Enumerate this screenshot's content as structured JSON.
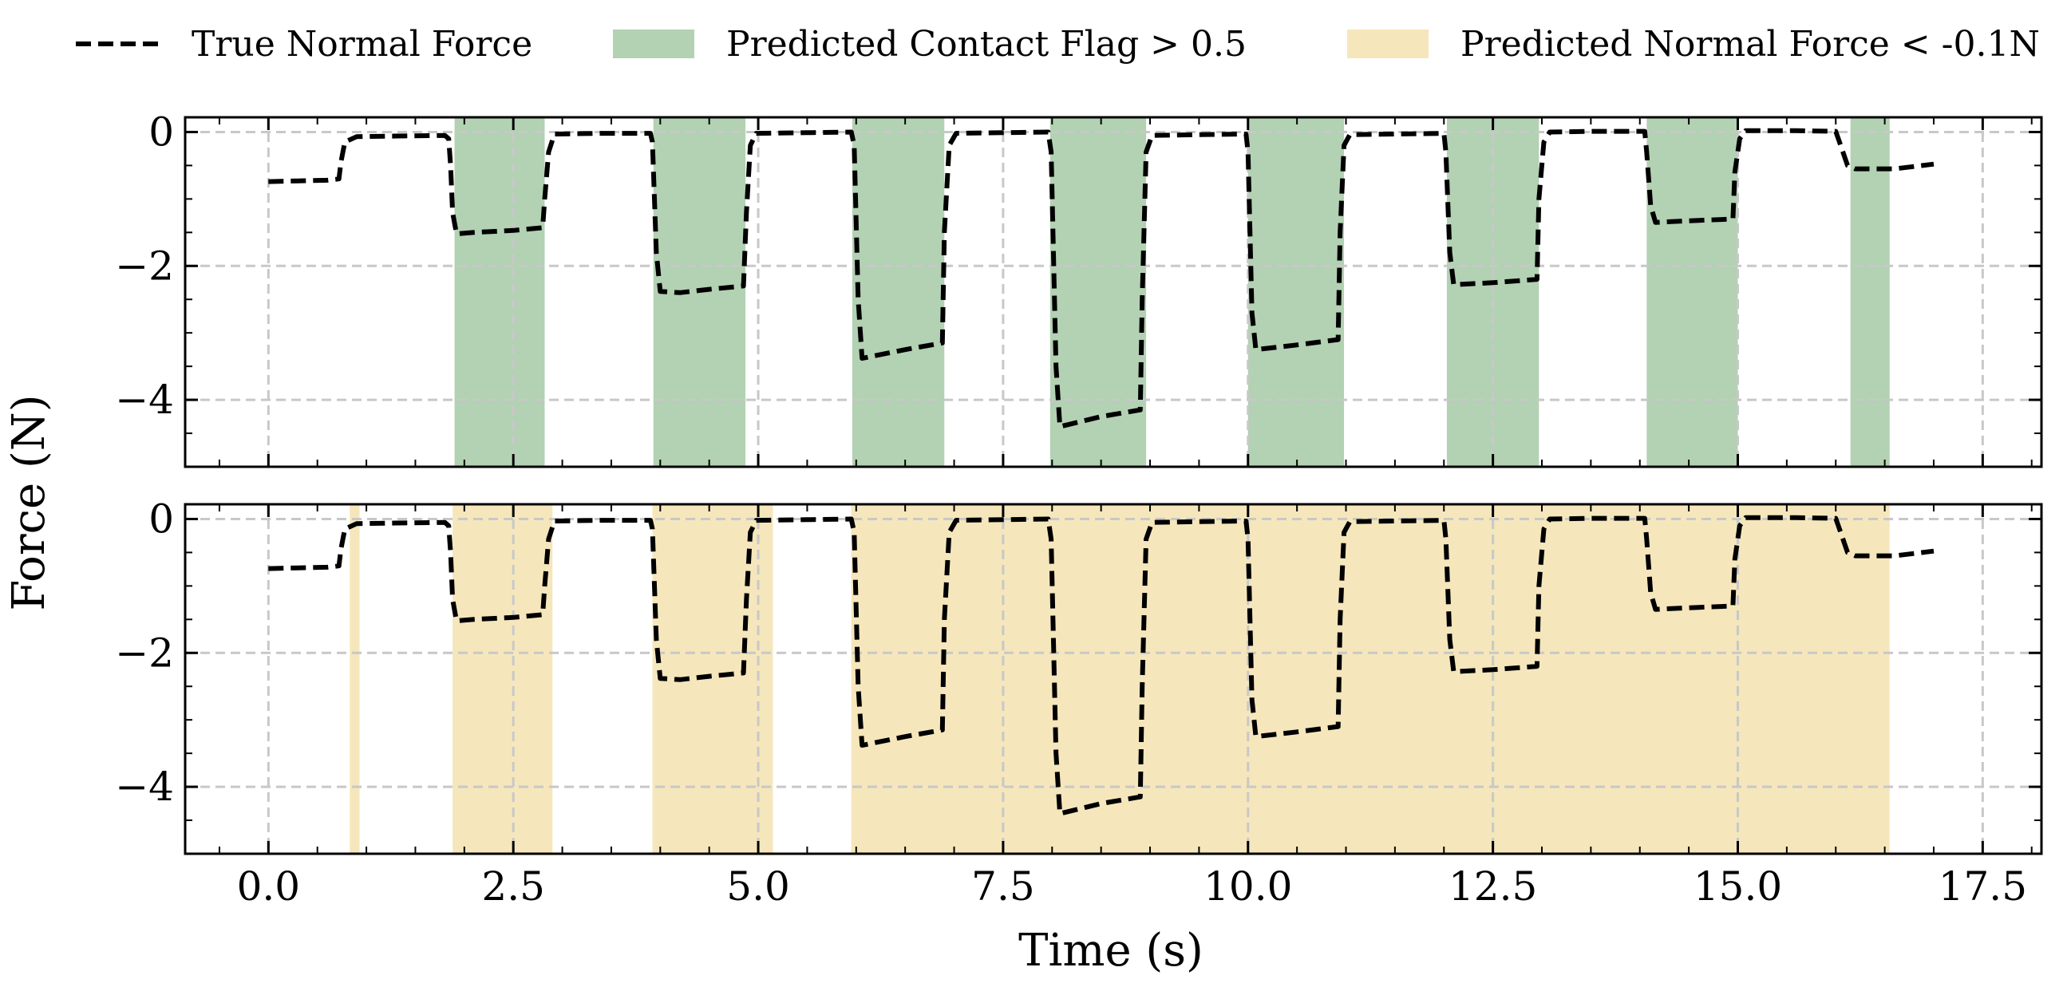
{
  "chart_data": {
    "type": "line",
    "xlabel": "Time (s)",
    "ylabel": "Force (N)",
    "xlim": [
      -0.85,
      18.1
    ],
    "ylim": [
      -5.0,
      0.22
    ],
    "x_ticks": [
      0.0,
      2.5,
      5.0,
      7.5,
      10.0,
      12.5,
      15.0,
      17.5
    ],
    "x_tick_labels": [
      "0.0",
      "2.5",
      "5.0",
      "7.5",
      "10.0",
      "12.5",
      "15.0",
      "17.5"
    ],
    "y_ticks": [
      0,
      -2,
      -4
    ],
    "y_tick_labels": [
      "0",
      "−2",
      "−4"
    ],
    "grid": true,
    "legend": {
      "placement": "top",
      "entries": [
        {
          "label": "True Normal Force",
          "style": "dashed-line",
          "color": "#000000"
        },
        {
          "label": "Predicted Contact Flag > 0.5",
          "style": "patch",
          "color": "#b3d1b3"
        },
        {
          "label": "Predicted Normal Force < -0.1N",
          "style": "patch",
          "color": "#f5e6bc"
        }
      ]
    },
    "series": [
      {
        "name": "True Normal Force",
        "color": "#000000",
        "style": "dashed",
        "points": [
          [
            0.0,
            -0.74
          ],
          [
            0.3,
            -0.73
          ],
          [
            0.6,
            -0.72
          ],
          [
            0.72,
            -0.7
          ],
          [
            0.74,
            -0.45
          ],
          [
            0.78,
            -0.15
          ],
          [
            0.9,
            -0.07
          ],
          [
            1.3,
            -0.06
          ],
          [
            1.8,
            -0.05
          ],
          [
            1.84,
            -0.1
          ],
          [
            1.86,
            -0.5
          ],
          [
            1.88,
            -1.2
          ],
          [
            1.92,
            -1.52
          ],
          [
            2.1,
            -1.5
          ],
          [
            2.5,
            -1.47
          ],
          [
            2.8,
            -1.43
          ],
          [
            2.82,
            -1.0
          ],
          [
            2.86,
            -0.3
          ],
          [
            2.92,
            -0.03
          ],
          [
            3.4,
            -0.02
          ],
          [
            3.9,
            -0.02
          ],
          [
            3.92,
            -0.15
          ],
          [
            3.96,
            -1.8
          ],
          [
            4.0,
            -2.38
          ],
          [
            4.2,
            -2.4
          ],
          [
            4.5,
            -2.35
          ],
          [
            4.85,
            -2.3
          ],
          [
            4.88,
            -1.2
          ],
          [
            4.92,
            -0.2
          ],
          [
            4.98,
            -0.02
          ],
          [
            5.5,
            -0.01
          ],
          [
            5.95,
            0.0
          ],
          [
            5.98,
            -0.2
          ],
          [
            6.02,
            -2.5
          ],
          [
            6.06,
            -3.38
          ],
          [
            6.5,
            -3.25
          ],
          [
            6.88,
            -3.15
          ],
          [
            6.9,
            -1.5
          ],
          [
            6.95,
            -0.2
          ],
          [
            7.02,
            -0.02
          ],
          [
            7.5,
            -0.01
          ],
          [
            7.96,
            0.0
          ],
          [
            7.99,
            -0.3
          ],
          [
            8.04,
            -3.5
          ],
          [
            8.08,
            -4.4
          ],
          [
            8.5,
            -4.25
          ],
          [
            8.9,
            -4.15
          ],
          [
            8.92,
            -2.5
          ],
          [
            8.96,
            -0.3
          ],
          [
            9.02,
            -0.05
          ],
          [
            9.5,
            -0.04
          ],
          [
            9.98,
            -0.03
          ],
          [
            10.0,
            -0.3
          ],
          [
            10.04,
            -2.7
          ],
          [
            10.08,
            -3.25
          ],
          [
            10.5,
            -3.18
          ],
          [
            10.92,
            -3.1
          ],
          [
            10.94,
            -1.5
          ],
          [
            10.98,
            -0.2
          ],
          [
            11.04,
            -0.04
          ],
          [
            11.5,
            -0.03
          ],
          [
            12.0,
            -0.02
          ],
          [
            12.02,
            -0.3
          ],
          [
            12.06,
            -1.8
          ],
          [
            12.1,
            -2.28
          ],
          [
            12.5,
            -2.25
          ],
          [
            12.95,
            -2.2
          ],
          [
            12.97,
            -1.0
          ],
          [
            13.02,
            -0.15
          ],
          [
            13.08,
            0.0
          ],
          [
            13.5,
            0.01
          ],
          [
            14.05,
            0.01
          ],
          [
            14.07,
            -0.3
          ],
          [
            14.11,
            -1.1
          ],
          [
            14.16,
            -1.35
          ],
          [
            14.6,
            -1.32
          ],
          [
            14.95,
            -1.3
          ],
          [
            14.97,
            -0.6
          ],
          [
            15.02,
            -0.1
          ],
          [
            15.08,
            0.02
          ],
          [
            15.6,
            0.02
          ],
          [
            16.0,
            0.01
          ],
          [
            16.05,
            -0.2
          ],
          [
            16.12,
            -0.5
          ],
          [
            16.2,
            -0.55
          ],
          [
            16.6,
            -0.55
          ],
          [
            17.0,
            -0.48
          ]
        ]
      }
    ],
    "panels": [
      {
        "name": "contact-flag",
        "shaded_label": "Predicted Contact Flag > 0.5",
        "color": "#b3d1b3",
        "intervals": [
          [
            1.9,
            2.82
          ],
          [
            3.93,
            4.87
          ],
          [
            5.96,
            6.9
          ],
          [
            7.98,
            8.96
          ],
          [
            10.0,
            10.98
          ],
          [
            12.03,
            12.97
          ],
          [
            14.07,
            15.0
          ],
          [
            16.15,
            16.55
          ]
        ]
      },
      {
        "name": "normal-force",
        "shaded_label": "Predicted Normal Force < -0.1N",
        "color": "#f5e6bc",
        "intervals": [
          [
            0.83,
            0.93
          ],
          [
            1.88,
            2.9
          ],
          [
            3.92,
            5.15
          ],
          [
            5.95,
            16.55
          ]
        ]
      }
    ]
  }
}
